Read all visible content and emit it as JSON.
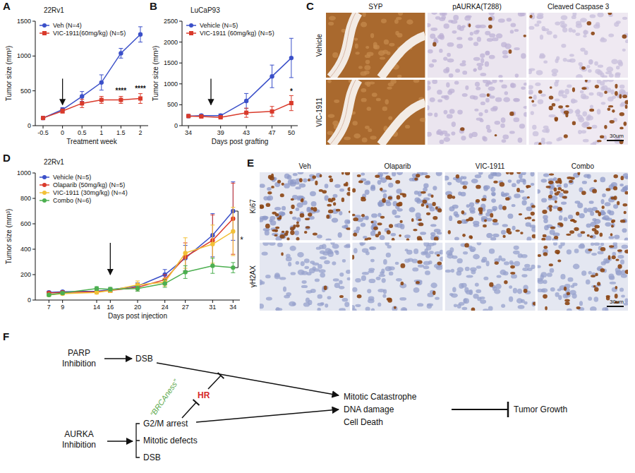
{
  "chart_data": [
    {
      "panel": "A",
      "type": "line",
      "title": "22Rv1",
      "x_label": "Treatment week",
      "y_label": "Tumor size (mm³)",
      "x": [
        -0.5,
        0,
        0.5,
        1,
        1.5,
        2
      ],
      "xlim": [
        -0.7,
        2.2
      ],
      "xticks": [
        -0.5,
        0,
        0.5,
        1,
        1.5,
        2
      ],
      "ylim": [
        0,
        1500
      ],
      "yticks": [
        0,
        500,
        1000,
        1500
      ],
      "legend": "top-left",
      "arrow_x": 0,
      "series": [
        {
          "name": "Veh (N=4)",
          "color": "#3b50c9",
          "marker": "circle",
          "values": [
            110,
            230,
            420,
            620,
            1040,
            1310
          ],
          "errors": [
            20,
            30,
            70,
            110,
            70,
            110
          ]
        },
        {
          "name": "VIC-1911(60mg/kg) (N=5)",
          "color": "#d93a2b",
          "marker": "square",
          "values": [
            110,
            210,
            320,
            370,
            370,
            390
          ],
          "errors": [
            15,
            30,
            60,
            50,
            50,
            70
          ]
        }
      ],
      "annotations": [
        {
          "text": "****",
          "x": 1.5,
          "y": 470
        },
        {
          "text": "****",
          "x": 2,
          "y": 500
        }
      ]
    },
    {
      "panel": "B",
      "type": "line",
      "title": "LuCaP93",
      "x_label": "Days post grafting",
      "y_label": "Tumor size (mm³)",
      "x": [
        34,
        36,
        39,
        43,
        47,
        50
      ],
      "xlim": [
        33,
        51
      ],
      "xticks": [
        34,
        39,
        43,
        47,
        50
      ],
      "ylim": [
        0,
        2500
      ],
      "yticks": [
        0,
        500,
        1000,
        1500,
        2000,
        2500
      ],
      "legend": "top-left",
      "arrow_x": 37.5,
      "series": [
        {
          "name": "Vehicle (N=5)",
          "color": "#3b50c9",
          "marker": "circle",
          "values": [
            230,
            240,
            240,
            590,
            1180,
            1620
          ],
          "errors": [
            30,
            30,
            40,
            180,
            270,
            470
          ]
        },
        {
          "name": "VIC-1911 (60mg/kg) (N=5)",
          "color": "#d93a2b",
          "marker": "square",
          "values": [
            230,
            220,
            200,
            310,
            340,
            540
          ],
          "errors": [
            30,
            30,
            30,
            110,
            120,
            180
          ]
        }
      ],
      "annotations": [
        {
          "text": "*",
          "x": 50,
          "y": 760
        }
      ]
    },
    {
      "panel": "D",
      "type": "line",
      "title": "22Rv1",
      "x_label": "Days post injection",
      "y_label": "Tumor size (mm³)",
      "x": [
        7,
        9,
        14,
        16,
        20,
        24,
        27,
        31,
        34
      ],
      "xlim": [
        5,
        35
      ],
      "xticks": [
        7,
        9,
        14,
        16,
        20,
        24,
        27,
        31,
        34
      ],
      "ylim": [
        0,
        1000
      ],
      "yticks": [
        0,
        200,
        400,
        600,
        800,
        1000
      ],
      "legend": "top-left",
      "arrow_x": 16,
      "series": [
        {
          "name": "Vehicle (N=5)",
          "color": "#3b50c9",
          "marker": "circle",
          "values": [
            60,
            65,
            70,
            80,
            110,
            200,
            330,
            510,
            700
          ],
          "errors": [
            10,
            10,
            15,
            15,
            25,
            40,
            100,
            170,
            230
          ]
        },
        {
          "name": "Olaparib (50mg/kg) (N=5)",
          "color": "#d93a2b",
          "marker": "circle",
          "values": [
            55,
            60,
            65,
            75,
            100,
            160,
            340,
            470,
            640
          ],
          "errors": [
            10,
            10,
            15,
            15,
            30,
            40,
            110,
            200,
            280
          ]
        },
        {
          "name": "VIC-1911 (30mg/kg) (N=4)",
          "color": "#f2c037",
          "marker": "circle",
          "values": [
            40,
            50,
            60,
            75,
            120,
            140,
            370,
            440,
            540
          ],
          "errors": [
            10,
            10,
            10,
            15,
            30,
            30,
            120,
            150,
            190
          ]
        },
        {
          "name": "Combo (N=6)",
          "color": "#4caf50",
          "marker": "circle",
          "values": [
            40,
            55,
            90,
            85,
            90,
            130,
            220,
            270,
            255
          ],
          "errors": [
            10,
            10,
            15,
            15,
            20,
            30,
            50,
            60,
            40
          ]
        }
      ],
      "annotations": [
        {
          "text": "*",
          "x": 34,
          "y_from": 255,
          "y_to": 700
        }
      ]
    }
  ],
  "figure_c": {
    "panel": "C",
    "columns": [
      "SYP",
      "pAURKA(T288)",
      "Cleaved Caspase 3"
    ],
    "rows": [
      "Vehicle",
      "VIC-1911"
    ],
    "scale_bar": "30um"
  },
  "figure_e": {
    "panel": "E",
    "columns": [
      "Veh",
      "Olaparib",
      "VIC-1911",
      "Combo"
    ],
    "rows": [
      "Ki67",
      "γH2AX"
    ],
    "scale_bar": "30um"
  },
  "diagram_f": {
    "panel": "F",
    "parp": "PARP Inhibition",
    "parp_effect": "DSB",
    "aurka": "AURKA Inhibition",
    "aurka_effects": [
      "G2/M arrest",
      "Mitotic defects",
      "DSB"
    ],
    "hr": "HR",
    "brcaness": "“BRCAness”",
    "outcomes": [
      "Mitotic Catastrophe",
      "DNA damage",
      "Cell Death"
    ],
    "result": "Tumor Growth"
  }
}
